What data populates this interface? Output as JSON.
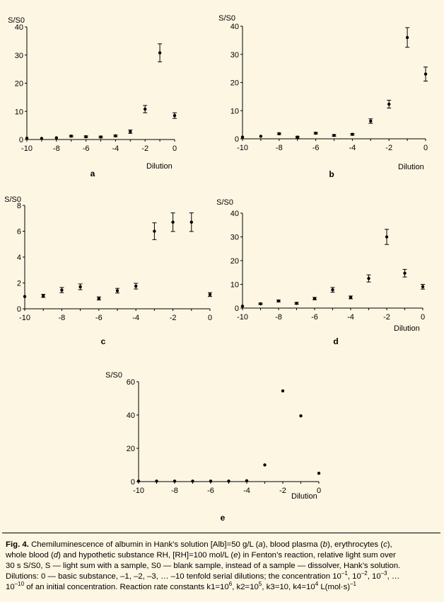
{
  "chart_data": [
    {
      "id": "a",
      "type": "scatter",
      "panel_label": "a",
      "ylabel": "S/S0",
      "xlabel": "Dilution",
      "xlim": [
        -10,
        0
      ],
      "ylim": [
        0,
        40
      ],
      "xticks": [
        "-10",
        "-8",
        "-6",
        "-4",
        "-2",
        "0"
      ],
      "xtick_values": [
        -10,
        -8,
        -6,
        -4,
        -2,
        0
      ],
      "yticks": [
        "0",
        "10",
        "20",
        "30",
        "40"
      ],
      "ytick_values": [
        0,
        10,
        20,
        30,
        40
      ],
      "points": [
        {
          "x": -10,
          "y": 0.5,
          "err": 0
        },
        {
          "x": -9,
          "y": 0.4,
          "err": 0
        },
        {
          "x": -8,
          "y": 0.6,
          "err": 0
        },
        {
          "x": -7,
          "y": 1.2,
          "err": 0.3
        },
        {
          "x": -6,
          "y": 1.0,
          "err": 0.3
        },
        {
          "x": -5,
          "y": 0.9,
          "err": 0.3
        },
        {
          "x": -4,
          "y": 1.3,
          "err": 0.3
        },
        {
          "x": -3,
          "y": 2.8,
          "err": 0.6
        },
        {
          "x": -2,
          "y": 10.8,
          "err": 1.3
        },
        {
          "x": -1,
          "y": 30.8,
          "err": 3.2
        },
        {
          "x": 0,
          "y": 8.5,
          "err": 1.0
        }
      ]
    },
    {
      "id": "b",
      "type": "scatter",
      "panel_label": "b",
      "ylabel": "S/S0",
      "xlabel": "Dilution",
      "xlim": [
        -10,
        0
      ],
      "ylim": [
        0,
        40
      ],
      "xticks": [
        "-10",
        "-8",
        "-6",
        "-4",
        "-2",
        "0"
      ],
      "xtick_values": [
        -10,
        -8,
        -6,
        -4,
        -2,
        0
      ],
      "yticks": [
        "0",
        "10",
        "20",
        "30",
        "40"
      ],
      "ytick_values": [
        0,
        10,
        20,
        30,
        40
      ],
      "points": [
        {
          "x": -10,
          "y": 0.6,
          "err": 0
        },
        {
          "x": -9,
          "y": 0.9,
          "err": 0
        },
        {
          "x": -8,
          "y": 1.8,
          "err": 0.3
        },
        {
          "x": -7,
          "y": 0.6,
          "err": 0.3
        },
        {
          "x": -6,
          "y": 2.0,
          "err": 0.3
        },
        {
          "x": -5,
          "y": 1.2,
          "err": 0.3
        },
        {
          "x": -4,
          "y": 1.6,
          "err": 0.3
        },
        {
          "x": -3,
          "y": 6.3,
          "err": 0.8
        },
        {
          "x": -2,
          "y": 12.3,
          "err": 1.4
        },
        {
          "x": -1,
          "y": 36.0,
          "err": 3.5
        },
        {
          "x": 0,
          "y": 23.0,
          "err": 2.5
        }
      ]
    },
    {
      "id": "c",
      "type": "scatter",
      "panel_label": "c",
      "ylabel": "S/S0",
      "xlabel": "",
      "xlim": [
        -10,
        0
      ],
      "ylim": [
        0,
        8
      ],
      "xticks": [
        "-10",
        "-8",
        "-6",
        "-4",
        "-2",
        "0"
      ],
      "xtick_values": [
        -10,
        -8,
        -6,
        -4,
        -2,
        0
      ],
      "yticks": [
        "0",
        "2",
        "4",
        "6",
        "8"
      ],
      "ytick_values": [
        0,
        2,
        4,
        6,
        8
      ],
      "points": [
        {
          "x": -10,
          "y": 0.95,
          "err": 0
        },
        {
          "x": -9,
          "y": 1.0,
          "err": 0.12
        },
        {
          "x": -8,
          "y": 1.45,
          "err": 0.2
        },
        {
          "x": -7,
          "y": 1.7,
          "err": 0.22
        },
        {
          "x": -6,
          "y": 0.8,
          "err": 0.12
        },
        {
          "x": -5,
          "y": 1.4,
          "err": 0.18
        },
        {
          "x": -4,
          "y": 1.75,
          "err": 0.22
        },
        {
          "x": -3,
          "y": 6.0,
          "err": 0.65
        },
        {
          "x": -2,
          "y": 6.7,
          "err": 0.72
        },
        {
          "x": -1,
          "y": 6.7,
          "err": 0.72
        },
        {
          "x": 0,
          "y": 1.1,
          "err": 0.15
        }
      ]
    },
    {
      "id": "d",
      "type": "scatter",
      "panel_label": "d",
      "ylabel": "S/S0",
      "xlabel": "Dilution",
      "xlim": [
        -10,
        0
      ],
      "ylim": [
        0,
        40
      ],
      "xticks": [
        "-10",
        "-8",
        "-6",
        "-4",
        "-2",
        "0"
      ],
      "xtick_values": [
        -10,
        -8,
        -6,
        -4,
        -2,
        0
      ],
      "yticks": [
        "0",
        "10",
        "20",
        "30",
        "40"
      ],
      "ytick_values": [
        0,
        10,
        20,
        30,
        40
      ],
      "points": [
        {
          "x": -10,
          "y": 0.8,
          "err": 0
        },
        {
          "x": -9,
          "y": 1.8,
          "err": 0.3
        },
        {
          "x": -8,
          "y": 3.0,
          "err": 0.4
        },
        {
          "x": -7,
          "y": 2.0,
          "err": 0.4
        },
        {
          "x": -6,
          "y": 4.0,
          "err": 0.5
        },
        {
          "x": -5,
          "y": 7.7,
          "err": 1.0
        },
        {
          "x": -4,
          "y": 4.5,
          "err": 0.6
        },
        {
          "x": -3,
          "y": 12.5,
          "err": 1.5
        },
        {
          "x": -2,
          "y": 30.0,
          "err": 3.2
        },
        {
          "x": -1,
          "y": 14.7,
          "err": 1.6
        },
        {
          "x": 0,
          "y": 9.0,
          "err": 1.0
        }
      ]
    },
    {
      "id": "e",
      "type": "scatter",
      "panel_label": "e",
      "ylabel": "S/S0",
      "xlabel": "Dilution",
      "xlim": [
        -10,
        0
      ],
      "ylim": [
        0,
        60
      ],
      "xticks": [
        "-10",
        "-8",
        "-6",
        "-4",
        "-2",
        "0"
      ],
      "xtick_values": [
        -10,
        -8,
        -6,
        -4,
        -2,
        0
      ],
      "yticks": [
        "0",
        "20",
        "40",
        "60"
      ],
      "ytick_values": [
        0,
        20,
        40,
        60
      ],
      "points": [
        {
          "x": -10,
          "y": 0.3,
          "err": 0
        },
        {
          "x": -9,
          "y": 0.3,
          "err": 0
        },
        {
          "x": -8,
          "y": 0.3,
          "err": 0
        },
        {
          "x": -7,
          "y": 0.3,
          "err": 0
        },
        {
          "x": -6,
          "y": 0.3,
          "err": 0
        },
        {
          "x": -5,
          "y": 0.3,
          "err": 0
        },
        {
          "x": -4,
          "y": 0.5,
          "err": 0
        },
        {
          "x": -3,
          "y": 10.0,
          "err": 0
        },
        {
          "x": -2,
          "y": 54.5,
          "err": 0
        },
        {
          "x": -1,
          "y": 39.5,
          "err": 0
        },
        {
          "x": 0,
          "y": 5.0,
          "err": 0
        }
      ]
    }
  ],
  "caption": {
    "lines": [
      [
        {
          "b": true,
          "t": "Fig. 4. "
        },
        {
          "t": "Chemiluminescence of albumin in Hank’s solution [Alb]=50 g/L ("
        },
        {
          "i": true,
          "t": "a"
        },
        {
          "t": "), blood plasma ("
        },
        {
          "i": true,
          "t": "b"
        },
        {
          "t": "), erythrocytes ("
        },
        {
          "i": true,
          "t": "c"
        },
        {
          "t": "),"
        }
      ],
      [
        {
          "t": "whole blood ("
        },
        {
          "i": true,
          "t": "d"
        },
        {
          "t": ") and hypothetic substance RH, [RH]=100 mol/L ("
        },
        {
          "i": true,
          "t": "e"
        },
        {
          "t": ") in Fenton’s reaction, relative light sum over"
        }
      ],
      [
        {
          "t": "30 s S/S0, S — light sum with a sample, S0 — blank sample, instead of a sample — dissolver, Hank’s solution."
        }
      ],
      [
        {
          "t": "Dilutions: 0 — basic substance, –1, –2, –3, … –10 tenfold serial dilutions; the concentration 10"
        },
        {
          "sup": true,
          "t": "–1"
        },
        {
          "t": ", 10"
        },
        {
          "sup": true,
          "t": "–2"
        },
        {
          "t": ", 10"
        },
        {
          "sup": true,
          "t": "–3"
        },
        {
          "t": ", …"
        }
      ],
      [
        {
          "t": "10"
        },
        {
          "sup": true,
          "t": "–10"
        },
        {
          "t": " of an initial concentration. Reaction rate constants k1=10"
        },
        {
          "sup": true,
          "t": "6"
        },
        {
          "t": ", k2=10"
        },
        {
          "sup": true,
          "t": "5"
        },
        {
          "t": ", k3=10, k4=10"
        },
        {
          "sup": true,
          "t": "4"
        },
        {
          "t": " L(mol·s)"
        },
        {
          "sup": true,
          "t": "–1"
        }
      ]
    ]
  }
}
